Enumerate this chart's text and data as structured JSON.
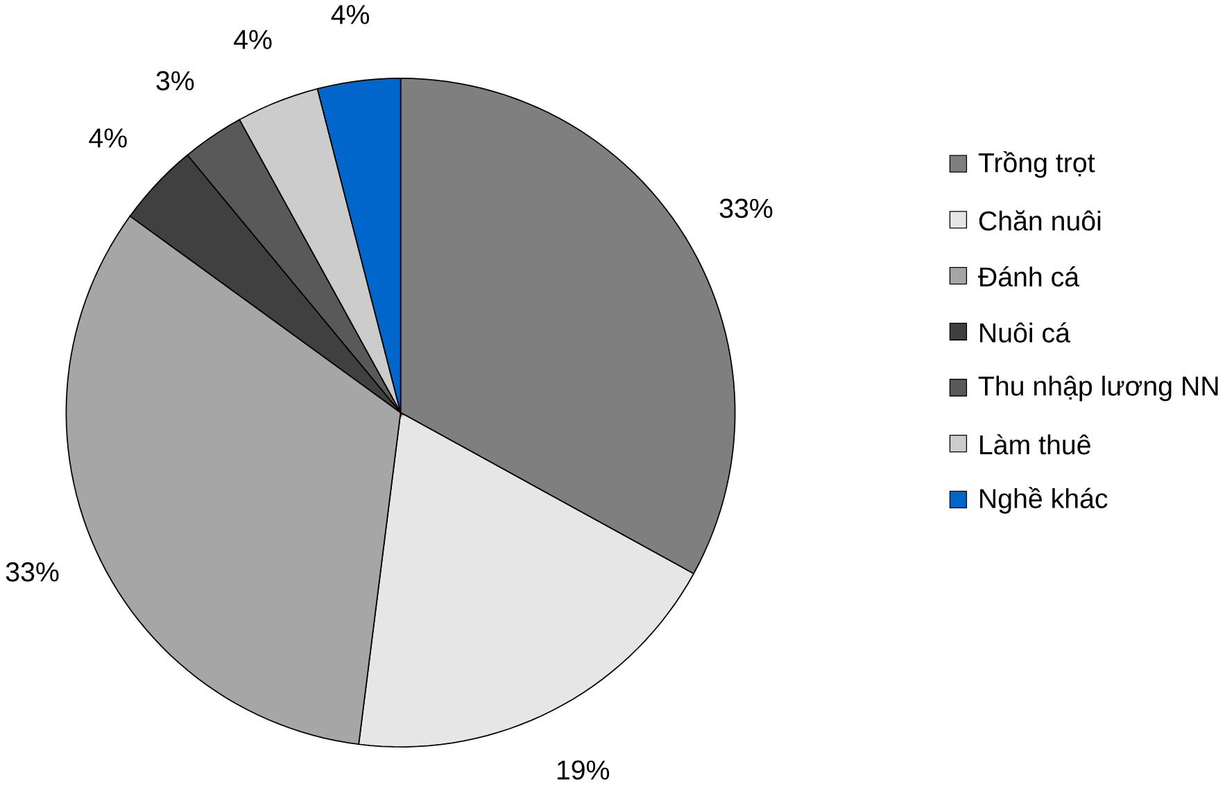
{
  "chart_data": {
    "type": "pie",
    "categories": [
      "Trồng trọt",
      "Chăn nuôi",
      "Đánh cá",
      "Nuôi cá",
      "Thu nhập lương NN",
      "Làm thuê",
      "Nghề khác"
    ],
    "values": [
      33,
      19,
      33,
      4,
      3,
      4,
      4
    ],
    "colors": [
      "#7f7f7f",
      "#e6e6e6",
      "#a6a6a6",
      "#404040",
      "#595959",
      "#cccccc",
      "#0066cc"
    ],
    "value_labels": [
      "33%",
      "19%",
      "33%",
      "4%",
      "3%",
      "4%",
      "4%"
    ],
    "legend": "right"
  }
}
